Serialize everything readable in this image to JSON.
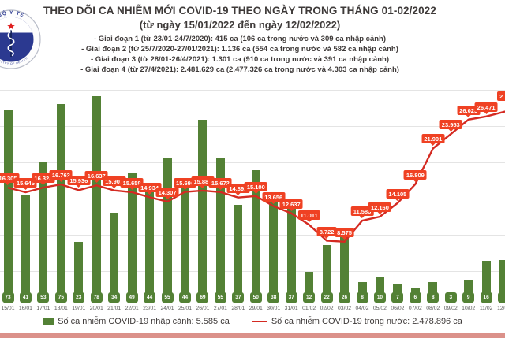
{
  "header": {
    "logo": {
      "top_text": "BỘ Y TẾ",
      "bottom_text": "MINISTRY OF HEALTH"
    },
    "title": "THEO DÕI CA NHIỄM MỚI COVID-19 THEO NGÀY TRONG THÁNG 01-02/2022",
    "subtitle": "(từ ngày 15/01/2022 đến ngày 12/02/2022)",
    "bullets": [
      "- Giai đoạn 1 (từ 23/01-24/7/2020): 415 ca (106 ca trong nước và 309 ca nhập cảnh)",
      "- Giai đoạn 2 (từ 25/7/2020-27/01/2021): 1.136 ca (554 ca trong nước và 582 ca nhập cảnh)",
      "- Giai đoạn 3 (từ 28/01-26/4/2021): 1.301 ca (910 ca trong nước và 391 ca nhập cảnh)",
      "- Giai đoạn 4 (từ 27/4/2021): 2.481.629 ca (2.477.326 ca trong nước và 4.303 ca nhập cảnh)"
    ]
  },
  "chart_data": {
    "type": "bar+line",
    "title": "THEO DÕI CA NHIỄM MỚI COVID-19 THEO NGÀY TRONG THÁNG 01-02/2022",
    "categories": [
      "15/01",
      "16/01",
      "17/01",
      "18/01",
      "19/01",
      "20/01",
      "21/01",
      "22/01",
      "23/01",
      "24/01",
      "25/01",
      "26/01",
      "27/01",
      "28/01",
      "29/01",
      "30/01",
      "31/01",
      "01/02",
      "02/02",
      "03/02",
      "04/02",
      "05/02",
      "06/02",
      "07/02",
      "08/02",
      "09/02",
      "10/02",
      "11/02"
    ],
    "series": [
      {
        "name": "Số ca nhiễm COVID-19 nhập cảnh",
        "type": "bar",
        "color": "#538135",
        "values": [
          73,
          41,
          53,
          75,
          23,
          78,
          34,
          49,
          44,
          55,
          44,
          69,
          55,
          37,
          50,
          38,
          37,
          12,
          22,
          26,
          8,
          10,
          7,
          6,
          8,
          3,
          9,
          16
        ]
      },
      {
        "name": "Số ca nhiễm COVID-19 trong nước",
        "type": "line",
        "color": "#d42a22",
        "label_box_color": "#ef4123",
        "values": [
          16305,
          15645,
          16325,
          16763,
          15936,
          16637,
          15901,
          15658,
          14934,
          14307,
          15696,
          15885,
          15672,
          14892,
          15100,
          13656,
          12637,
          11011,
          8722,
          8575,
          11586,
          12160,
          14105,
          16809,
          21901,
          23953,
          26023,
          26471
        ],
        "labels": [
          "16.305",
          "15.645",
          "16.325",
          "16.763",
          "15.936",
          "16.637",
          "15.901",
          "15.658",
          "14.934",
          "14.307",
          "15.696",
          "15.885",
          "15.672",
          "14.892",
          "15.100",
          "13.656",
          "12.637",
          "11.011",
          "8.722",
          "8.575",
          "11.586",
          "12.160",
          "14.105",
          "16.809",
          "21.901",
          "23.953",
          "26.023",
          "26.471"
        ]
      }
    ],
    "partial_right_edge": {
      "category": "12/02",
      "bar_clipped": true,
      "line_label_fragment": "2"
    },
    "grid": "horizontal",
    "legend_position": "bottom"
  },
  "legend": {
    "imported": {
      "label": "Số ca nhiễm COVID-19 nhập cảnh: 5.585 ca",
      "swatch_color": "#538135"
    },
    "domestic": {
      "label": "Số ca nhiễm COVID-19 trong nước: 2.478.896 ca",
      "swatch_color": "#d42a22"
    }
  },
  "colors": {
    "bar": "#538135",
    "line": "#d42a22",
    "label_box": "#ef4123",
    "title_text": "#3e3a39",
    "bottom_strip": "#db918a"
  }
}
